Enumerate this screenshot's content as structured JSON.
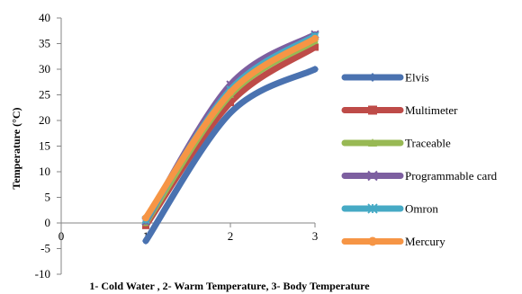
{
  "chart_data": {
    "type": "line",
    "title": "",
    "xlabel": "1- Cold Water  ,  2- Warm Temperature, 3- Body Temperature",
    "ylabel": "Temperature  (°C)",
    "xlim": [
      0,
      3
    ],
    "ylim": [
      -10,
      40
    ],
    "xticks": [
      0,
      1,
      2,
      3
    ],
    "yticks": [
      -10,
      -5,
      0,
      5,
      10,
      15,
      20,
      25,
      30,
      35,
      40
    ],
    "grid": false,
    "legend_position": "right",
    "x": [
      1,
      2,
      3
    ],
    "series": [
      {
        "name": "Elvis",
        "values": [
          -3.5,
          21.5,
          30
        ],
        "color": "#4a72b0",
        "marker": "diamond"
      },
      {
        "name": "Multimeter",
        "values": [
          -0.5,
          23.5,
          34.3
        ],
        "color": "#be4b48",
        "marker": "square"
      },
      {
        "name": "Traceable",
        "values": [
          0,
          25,
          35.5
        ],
        "color": "#98b954",
        "marker": "triangle"
      },
      {
        "name": "Programmable card",
        "values": [
          0.3,
          27,
          36.8
        ],
        "color": "#7d5fa0",
        "marker": "x"
      },
      {
        "name": "Omron",
        "values": [
          0.6,
          26,
          36.5
        ],
        "color": "#46aac5",
        "marker": "asterisk"
      },
      {
        "name": "Mercury",
        "values": [
          1,
          25.5,
          36
        ],
        "color": "#f69545",
        "marker": "circle"
      }
    ]
  }
}
